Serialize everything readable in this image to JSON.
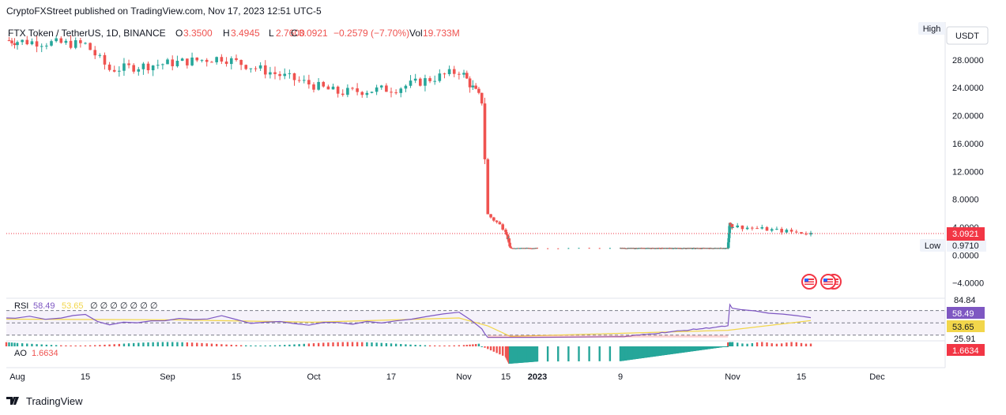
{
  "header": {
    "published": "CryptoFXStreet published on TradingView.com, Nov 17, 2023 12:51 UTC-5"
  },
  "legend": {
    "symbol": "FTX Token / TetherUS, 1D, BINANCE",
    "open_label": "O",
    "open": "3.3500",
    "high_label": "H",
    "high": "3.4945",
    "low_label": "L",
    "low": "2.7600",
    "close_label": "C",
    "close": "3.0921",
    "change": "−0.2579 (−7.70%)",
    "vol_label": "Vol",
    "vol": "19.733M"
  },
  "currency_button": "USDT",
  "high_tag": "High",
  "low_tag": "Low",
  "low_value": "0.9710",
  "last_price_label": "3.0921",
  "colors": {
    "up": "#26a69a",
    "down": "#ef5350",
    "rsi_line": "#7e57c2",
    "rsi_ma": "#f2d64b",
    "price_tag": "#f23645"
  },
  "icons": [
    "us-flag-icon",
    "us-flag-icon",
    "us-flag-icon"
  ],
  "rsi": {
    "label": "RSI",
    "value": "58.49",
    "ma_value": "53.65",
    "extra": "∅ ∅ ∅ ∅ ∅ ∅ ∅",
    "axis_top": "84.84",
    "axis_bottom": "25.91",
    "tag_value": "58.49",
    "tag_ma": "53.65"
  },
  "ao": {
    "label": "AO",
    "value": "1.6634",
    "tag_value": "1.6634"
  },
  "footer": {
    "brand": "TradingView"
  },
  "chart_data": {
    "type": "candlestick",
    "title": "FTX Token / TetherUS, 1D, BINANCE",
    "y_ticks": [
      "28.0000",
      "24.0000",
      "20.0000",
      "16.0000",
      "12.0000",
      "8.0000",
      "4.0000",
      "0.0000",
      "−4.0000"
    ],
    "y_tick_values": [
      28,
      24,
      20,
      16,
      12,
      8,
      4,
      0,
      -4
    ],
    "ylim": [
      -5.5,
      32.5
    ],
    "x_ticks": [
      "Aug",
      "15",
      "Sep",
      "15",
      "Oct",
      "17",
      "Nov",
      "15",
      "2023",
      "9",
      "Nov",
      "15",
      "Dec"
    ],
    "x_tick_dates": [
      "2022-08-01",
      "2022-08-15",
      "2022-09-01",
      "2022-09-15",
      "2022-10-01",
      "2022-10-17",
      "2022-11-01",
      "2022-11-15",
      "2023-01-01",
      "2023-01-09",
      "2023-11-01",
      "2023-11-15",
      "2023-12-01"
    ],
    "price_segments": [
      {
        "start": "2022-07-28",
        "end": "2022-08-15",
        "from": 30.8,
        "to": 30.2
      },
      {
        "start": "2022-08-15",
        "end": "2022-08-20",
        "from": 30.2,
        "to": 26.6
      },
      {
        "start": "2022-08-20",
        "end": "2022-09-12",
        "from": 26.6,
        "to": 28.3
      },
      {
        "start": "2022-09-12",
        "end": "2022-10-06",
        "from": 28.3,
        "to": 23.3
      },
      {
        "start": "2022-10-06",
        "end": "2022-10-18",
        "from": 23.3,
        "to": 23.9
      },
      {
        "start": "2022-10-18",
        "end": "2022-10-31",
        "from": 23.9,
        "to": 26.4
      },
      {
        "start": "2022-10-31",
        "end": "2022-11-07",
        "from": 26.4,
        "to": 22.1
      },
      {
        "start": "2022-11-07",
        "end": "2022-11-09",
        "from": 22.1,
        "to": 5.8
      },
      {
        "start": "2022-11-09",
        "end": "2022-11-22",
        "from": 5.8,
        "to": 1.0
      },
      {
        "start": "2022-11-22",
        "end": "2023-10-20",
        "from": 1.0,
        "to": 1.0
      },
      {
        "start": "2023-10-20",
        "end": "2023-10-25",
        "from": 1.0,
        "to": 4.6
      },
      {
        "start": "2023-10-25",
        "end": "2023-11-17",
        "from": 4.6,
        "to": 3.09
      }
    ],
    "last_price": 3.0921,
    "rsi_ylim": [
      25.91,
      84.84
    ],
    "rsi_bands": [
      70,
      50,
      30
    ],
    "rsi_points": [
      {
        "date": "2022-07-28",
        "v": 60
      },
      {
        "date": "2022-08-10",
        "v": 58
      },
      {
        "date": "2022-08-15",
        "v": 62
      },
      {
        "date": "2022-08-20",
        "v": 48
      },
      {
        "date": "2022-09-12",
        "v": 60
      },
      {
        "date": "2022-09-18",
        "v": 50
      },
      {
        "date": "2022-10-06",
        "v": 48
      },
      {
        "date": "2022-10-18",
        "v": 53
      },
      {
        "date": "2022-10-31",
        "v": 68
      },
      {
        "date": "2022-11-07",
        "v": 40
      },
      {
        "date": "2022-11-09",
        "v": 25
      },
      {
        "date": "2022-11-22",
        "v": 24
      },
      {
        "date": "2023-10-20",
        "v": 45
      },
      {
        "date": "2023-10-25",
        "v": 79
      },
      {
        "date": "2023-11-17",
        "v": 58.49
      }
    ],
    "rsi_ma_points": [
      {
        "date": "2022-07-28",
        "v": 56
      },
      {
        "date": "2022-09-01",
        "v": 55
      },
      {
        "date": "2022-10-01",
        "v": 51
      },
      {
        "date": "2022-10-31",
        "v": 58
      },
      {
        "date": "2022-11-09",
        "v": 45
      },
      {
        "date": "2022-11-22",
        "v": 28
      },
      {
        "date": "2023-10-20",
        "v": 38
      },
      {
        "date": "2023-11-17",
        "v": 53.65
      }
    ],
    "ao_value": 1.6634
  }
}
